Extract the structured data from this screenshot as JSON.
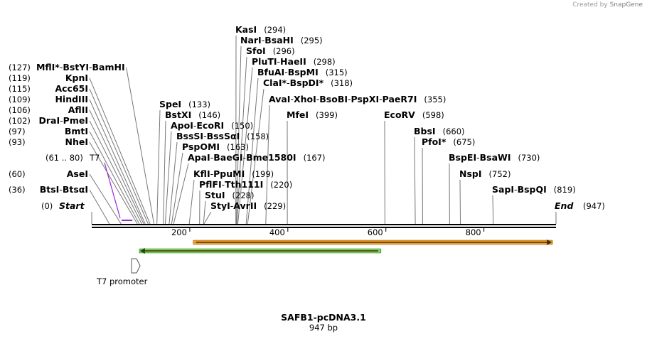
{
  "credit": {
    "prefix": "Created by",
    "brand": "SnapGene"
  },
  "plasmid": {
    "name": "SAFB1-pcDNA3.1",
    "length": "947 bp",
    "total_bp": 947
  },
  "ruler": {
    "ticks": [
      200,
      400,
      600,
      800
    ]
  },
  "ends": {
    "start": {
      "label": "Start",
      "pos": "(0)",
      "bp": 0
    },
    "end": {
      "label": "End",
      "pos": "(947)",
      "bp": 947
    }
  },
  "primer": {
    "label": "T7",
    "range": "(61 .. 80)",
    "from": 61,
    "to": 80,
    "color": "#9b26d6"
  },
  "feature": {
    "label": "T7 promoter",
    "bp": 61
  },
  "bars": [
    {
      "name": "orange-orf",
      "from": 207,
      "to": 940,
      "dir": "right",
      "color": "#f0a030",
      "border": "#8a5a10"
    },
    {
      "name": "green-orf",
      "from": 97,
      "to": 590,
      "dir": "left",
      "color": "#7bd35a",
      "border": "#2e7d1e"
    }
  ],
  "colors": {
    "backbone": "#000000",
    "primary_label": "#9b26d6"
  },
  "sites": [
    {
      "names": [
        "KasI"
      ],
      "stars": [
        false
      ],
      "pos": "(294)",
      "bp": 294
    },
    {
      "names": [
        "NarI",
        "BsaHI"
      ],
      "stars": [
        false,
        false
      ],
      "pos": "(295)",
      "bp": 295
    },
    {
      "names": [
        "SfoI"
      ],
      "stars": [
        false
      ],
      "pos": "(296)",
      "bp": 296
    },
    {
      "names": [
        "PluTI",
        "HaeII"
      ],
      "stars": [
        false,
        false
      ],
      "pos": "(298)",
      "bp": 298
    },
    {
      "names": [
        "BfuAI",
        "BspMI"
      ],
      "stars": [
        false,
        false
      ],
      "pos": "(315)",
      "bp": 315
    },
    {
      "names": [
        "ClaI",
        "BspDI"
      ],
      "stars": [
        true,
        true
      ],
      "pos": "(318)",
      "bp": 318
    },
    {
      "names": [
        "AvaI",
        "XhoI",
        "BsoBI",
        "PspXI",
        "PaeR7I"
      ],
      "stars": [
        false,
        false,
        false,
        false,
        false
      ],
      "pos": "(355)",
      "bp": 355
    },
    {
      "names": [
        "MfeI"
      ],
      "stars": [
        false
      ],
      "pos": "(399)",
      "bp": 399
    },
    {
      "names": [
        "EcoRV"
      ],
      "stars": [
        false
      ],
      "pos": "(598)",
      "bp": 598
    },
    {
      "names": [
        "BbsI"
      ],
      "stars": [
        false
      ],
      "pos": "(660)",
      "bp": 660
    },
    {
      "names": [
        "PfoI"
      ],
      "stars": [
        true
      ],
      "pos": "(675)",
      "bp": 675
    },
    {
      "names": [
        "BspEI",
        "BsaWI"
      ],
      "stars": [
        false,
        false
      ],
      "pos": "(730)",
      "bp": 730
    },
    {
      "names": [
        "NspI"
      ],
      "stars": [
        false
      ],
      "pos": "(752)",
      "bp": 752
    },
    {
      "names": [
        "SapI",
        "BspQI"
      ],
      "stars": [
        false,
        false
      ],
      "pos": "(819)",
      "bp": 819
    },
    {
      "names": [
        "SpeI"
      ],
      "stars": [
        false
      ],
      "pos": "(133)",
      "bp": 133
    },
    {
      "names": [
        "BstXI"
      ],
      "stars": [
        false
      ],
      "pos": "(146)",
      "bp": 146
    },
    {
      "names": [
        "ApoI",
        "EcoRI"
      ],
      "stars": [
        false,
        false
      ],
      "pos": "(150)",
      "bp": 150
    },
    {
      "names": [
        "BssSI",
        "BssSαI"
      ],
      "stars": [
        false,
        false
      ],
      "pos": "(158)",
      "bp": 158
    },
    {
      "names": [
        "PspOMI"
      ],
      "stars": [
        false
      ],
      "pos": "(163)",
      "bp": 163
    },
    {
      "names": [
        "ApaI",
        "BaeGI",
        "Bme1580I"
      ],
      "stars": [
        false,
        false,
        false
      ],
      "pos": "(167)",
      "bp": 167
    },
    {
      "names": [
        "KflI",
        "PpuMI"
      ],
      "stars": [
        false,
        false
      ],
      "pos": "(199)",
      "bp": 199
    },
    {
      "names": [
        "PflFI",
        "Tth111I"
      ],
      "stars": [
        false,
        false
      ],
      "pos": "(220)",
      "bp": 220
    },
    {
      "names": [
        "StuI"
      ],
      "stars": [
        false
      ],
      "pos": "(228)",
      "bp": 228
    },
    {
      "names": [
        "StyI",
        "AvrII"
      ],
      "stars": [
        false,
        false
      ],
      "pos": "(229)",
      "bp": 229
    },
    {
      "names": [
        "MflI",
        "BstYI",
        "BamHI"
      ],
      "stars": [
        true,
        false,
        false
      ],
      "pos": "(127)",
      "bp": 127
    },
    {
      "names": [
        "KpnI"
      ],
      "stars": [
        false
      ],
      "pos": "(119)",
      "bp": 119
    },
    {
      "names": [
        "Acc65I"
      ],
      "stars": [
        false
      ],
      "pos": "(115)",
      "bp": 115
    },
    {
      "names": [
        "HindIII"
      ],
      "stars": [
        false
      ],
      "pos": "(109)",
      "bp": 109
    },
    {
      "names": [
        "AflII"
      ],
      "stars": [
        false
      ],
      "pos": "(106)",
      "bp": 106
    },
    {
      "names": [
        "DraI",
        "PmeI"
      ],
      "stars": [
        false,
        false
      ],
      "pos": "(102)",
      "bp": 102
    },
    {
      "names": [
        "BmtI"
      ],
      "stars": [
        false
      ],
      "pos": "(97)",
      "bp": 97
    },
    {
      "names": [
        "NheI"
      ],
      "stars": [
        false
      ],
      "pos": "(93)",
      "bp": 93
    },
    {
      "names": [
        "AseI"
      ],
      "stars": [
        false
      ],
      "pos": "(60)",
      "bp": 60
    },
    {
      "names": [
        "BtsI",
        "BtsαI"
      ],
      "stars": [
        false,
        false
      ],
      "pos": "(36)",
      "bp": 36
    }
  ]
}
